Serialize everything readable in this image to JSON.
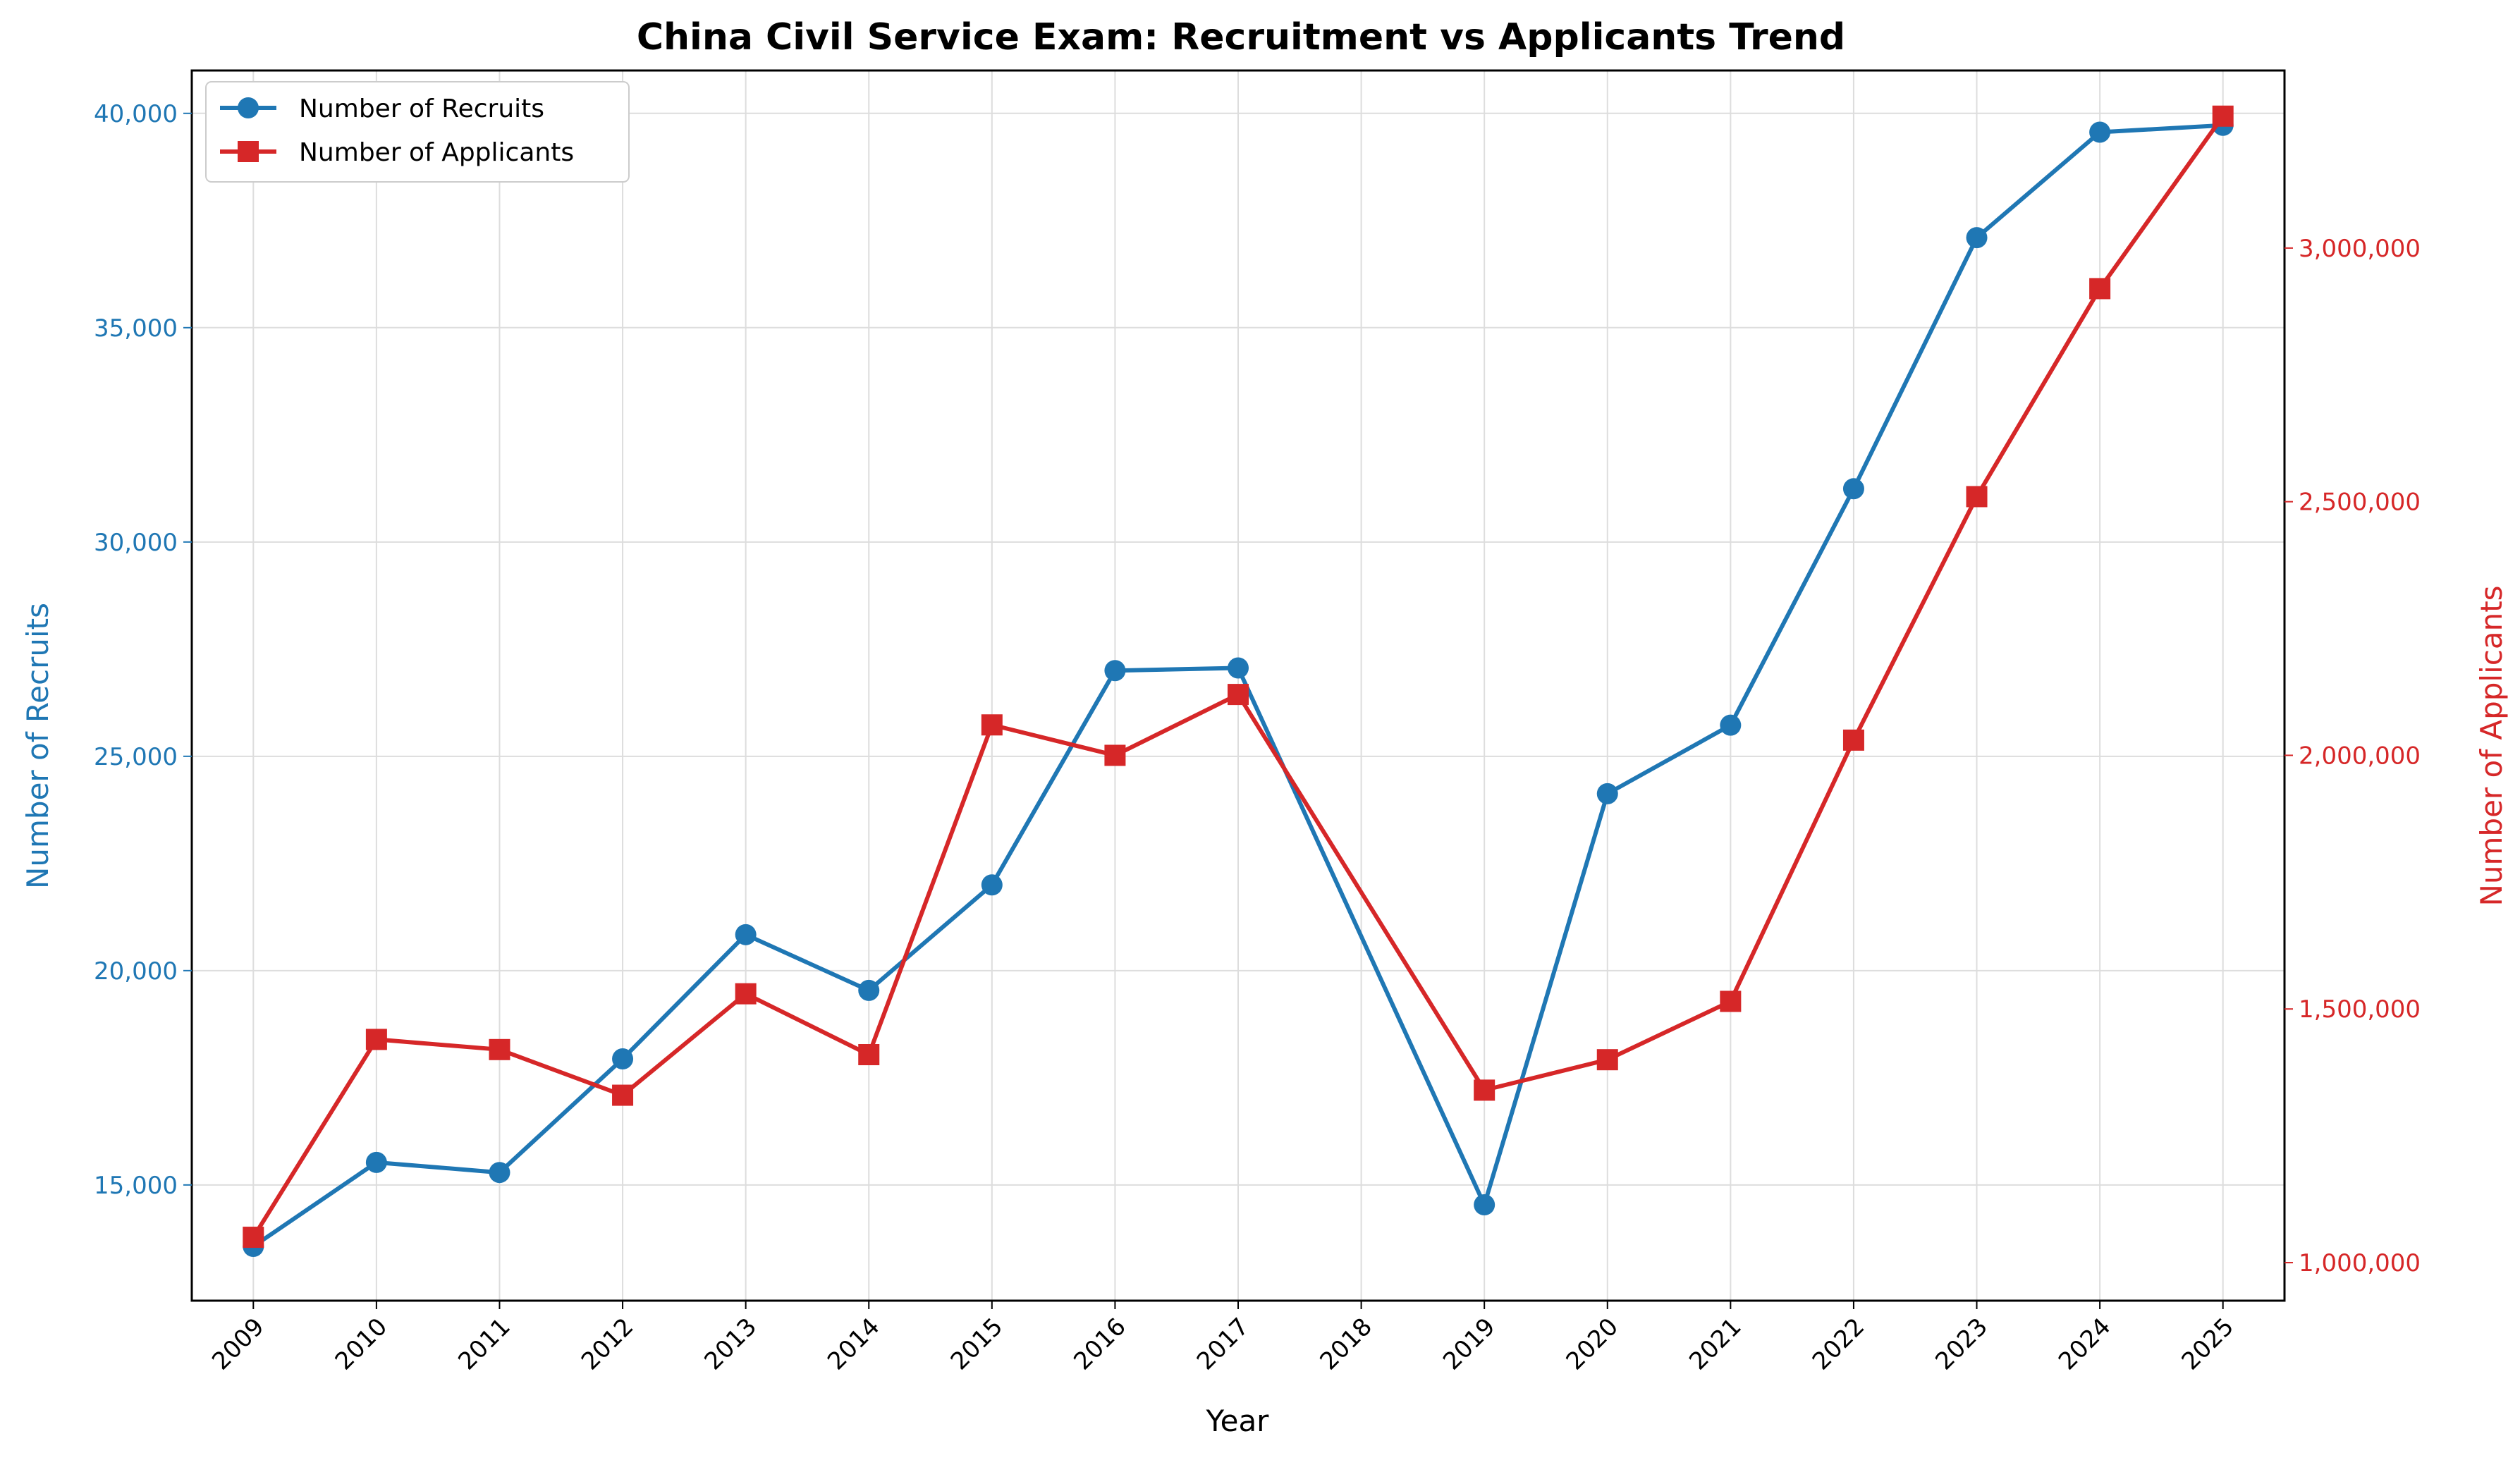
{
  "chart_data": {
    "type": "line",
    "title": "China Civil Service Exam: Recruitment vs Applicants Trend",
    "xlabel": "Year",
    "ylabel_left": "Number of Recruits",
    "ylabel_right": "Number of Applicants",
    "x": [
      2009,
      2010,
      2011,
      2012,
      2013,
      2014,
      2015,
      2016,
      2017,
      2018,
      2019,
      2020,
      2021,
      2022,
      2023,
      2024,
      2025
    ],
    "x_tick_labels": [
      "2009",
      "2010",
      "2011",
      "2012",
      "2013",
      "2014",
      "2015",
      "2016",
      "2017",
      "2018",
      "2019",
      "2020",
      "2021",
      "2022",
      "2023",
      "2024",
      "2025"
    ],
    "ylim_left": [
      12300,
      41000
    ],
    "ylim_right": [
      925000,
      3350000
    ],
    "y_ticks_left": [
      15000,
      20000,
      25000,
      30000,
      35000,
      40000
    ],
    "y_tick_labels_left": [
      "15,000",
      "20,000",
      "25,000",
      "30,000",
      "35,000",
      "40,000"
    ],
    "y_ticks_right": [
      1000000,
      1500000,
      2000000,
      2500000,
      3000000
    ],
    "y_tick_labels_right": [
      "1,000,000",
      "1,500,000",
      "2,000,000",
      "2,500,000",
      "3,000,000"
    ],
    "grid": true,
    "legend_position": "top-left",
    "series": [
      {
        "name": "Number of Recruits",
        "axis": "left",
        "color": "#1f77b4",
        "marker": "circle",
        "values": [
          13566,
          15526,
          15290,
          17941,
          20839,
          19538,
          22000,
          27000,
          27061,
          null,
          14537,
          24128,
          25726,
          31242,
          37100,
          39561,
          39721
        ]
      },
      {
        "name": "Number of Applicants",
        "axis": "right",
        "color": "#d62728",
        "marker": "square",
        "values": [
          1050000,
          1440000,
          1420000,
          1330000,
          1530000,
          1410000,
          2060000,
          2000000,
          2120000,
          null,
          1340000,
          1400000,
          1515000,
          2030000,
          2510000,
          2920000,
          3260000
        ]
      }
    ]
  }
}
